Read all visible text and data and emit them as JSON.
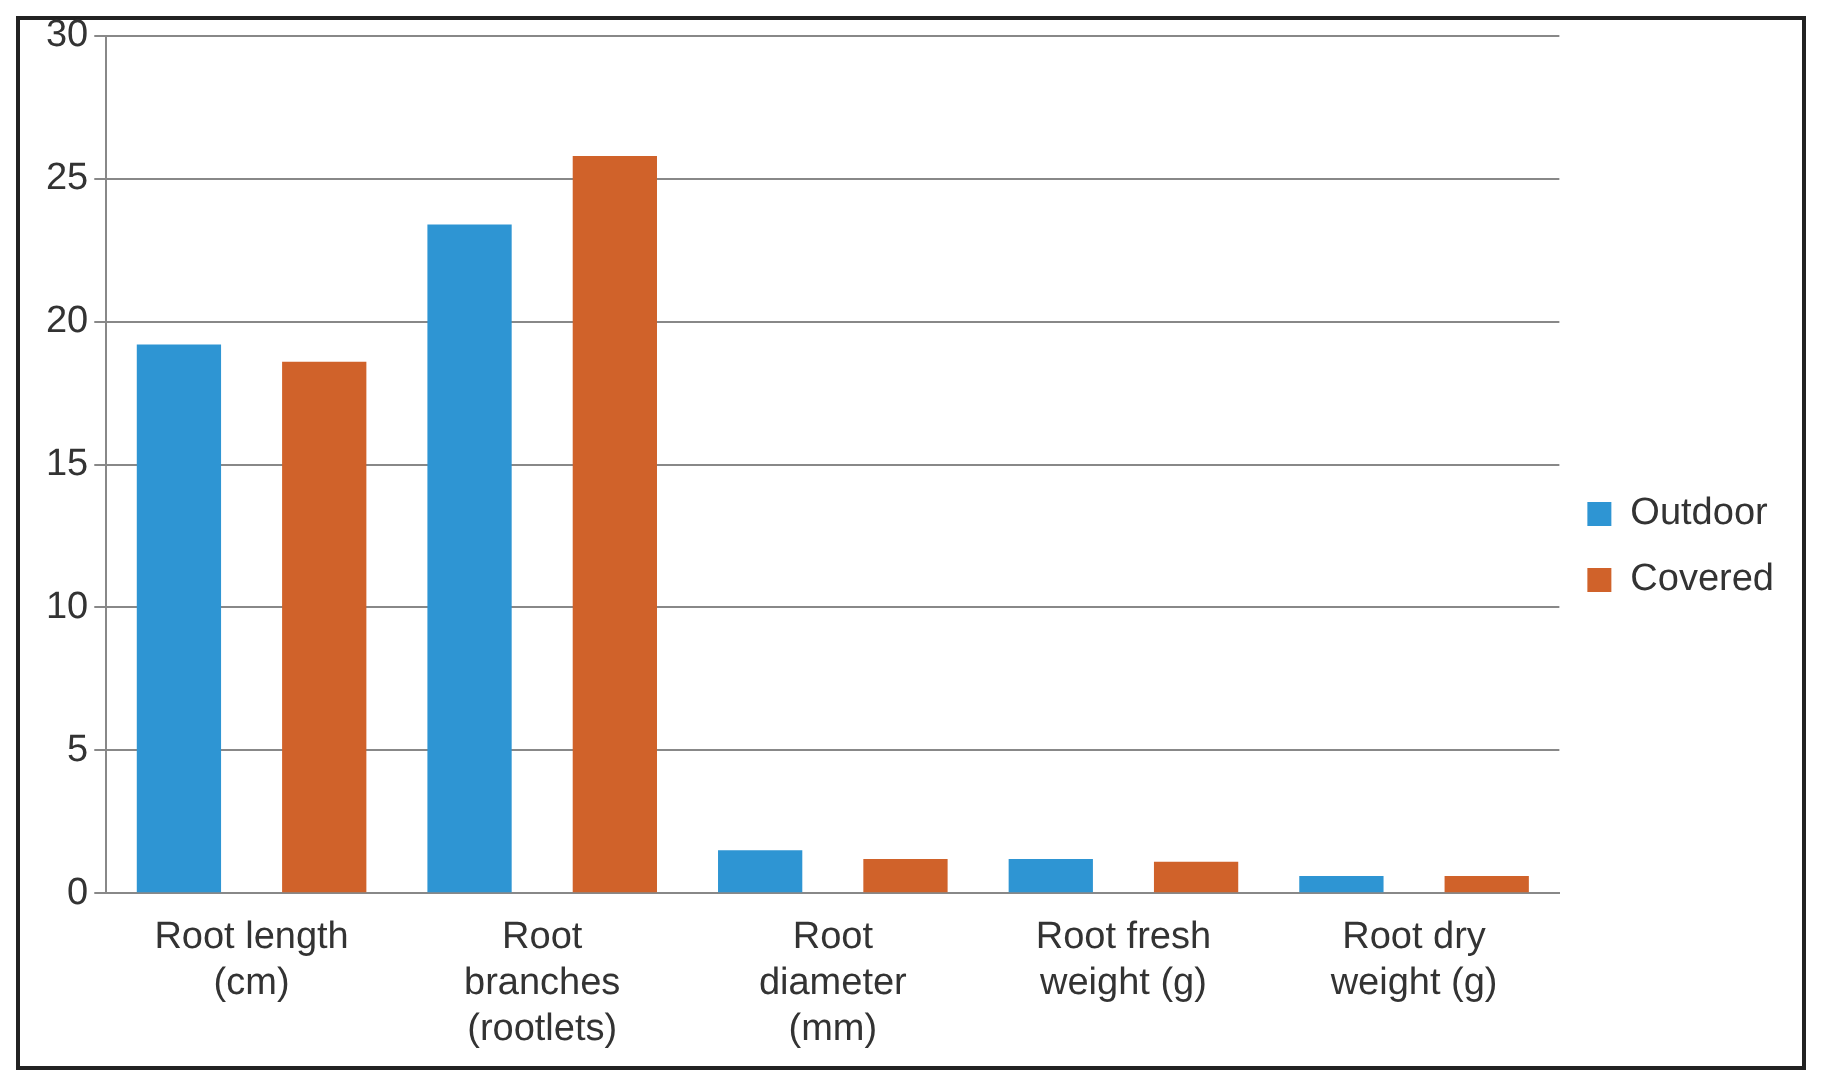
{
  "chart_data": {
    "type": "bar",
    "categories": [
      "Root length (cm)",
      "Root branches (rootlets)",
      "Root diameter (mm)",
      "Root fresh weight (g)",
      "Root dry weight (g)"
    ],
    "series": [
      {
        "name": "Outdoor",
        "color": "#2e95d3",
        "values": [
          19.2,
          23.4,
          1.5,
          1.2,
          0.6
        ]
      },
      {
        "name": "Covered",
        "color": "#d0622a",
        "values": [
          18.6,
          25.8,
          1.2,
          1.1,
          0.6
        ]
      }
    ],
    "ylim": [
      0,
      30
    ],
    "yticks": [
      0,
      5,
      10,
      15,
      20,
      25,
      30
    ],
    "grid": "y",
    "legend": "right"
  }
}
